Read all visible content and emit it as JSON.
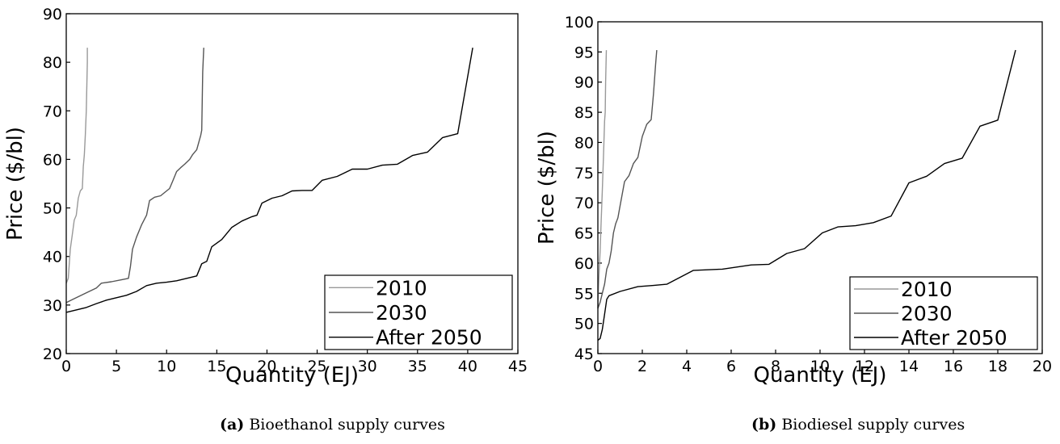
{
  "captions": [
    {
      "tag": "(a)",
      "text": "Bioethanol supply curves"
    },
    {
      "tag": "(b)",
      "text": "Biodiesel supply curves"
    }
  ],
  "chart_data": [
    {
      "type": "line",
      "title": "",
      "xlabel": "Quantity (EJ)",
      "ylabel": "Price ($/bl)",
      "xlim": [
        0,
        45
      ],
      "ylim": [
        20,
        90
      ],
      "xticks": [
        0,
        5,
        10,
        15,
        20,
        25,
        30,
        35,
        40,
        45
      ],
      "yticks": [
        20,
        30,
        40,
        50,
        60,
        70,
        80,
        90
      ],
      "grid": false,
      "legend_position": "bottom-right",
      "series": [
        {
          "name": "2010",
          "color": "#999999",
          "x": [
            0,
            0.2,
            0.4,
            0.6,
            0.8,
            1.0,
            1.2,
            1.4,
            1.6,
            1.7,
            1.8,
            1.9,
            2.0,
            2.1,
            2.1
          ],
          "y": [
            34.5,
            35.5,
            41.5,
            44.5,
            47.5,
            48.5,
            52,
            53.5,
            54,
            58.5,
            61,
            65,
            70,
            80,
            83
          ]
        },
        {
          "name": "2030",
          "color": "#555555",
          "x": [
            0,
            0.5,
            1,
            2,
            3,
            3.5,
            4.5,
            5.5,
            6.2,
            6.4,
            6.6,
            7.0,
            7.5,
            8.0,
            8.3,
            8.8,
            9.4,
            10.3,
            10.6,
            11.0,
            11.4,
            11.8,
            12.3,
            12.6,
            13.0,
            13.2,
            13.4,
            13.5,
            13.6,
            13.7
          ],
          "y": [
            30.5,
            31,
            31.5,
            32.5,
            33.5,
            34.5,
            34.8,
            35.2,
            35.5,
            38,
            41.5,
            44,
            46.5,
            48.5,
            51.5,
            52.2,
            52.5,
            54,
            55.5,
            57.5,
            58.3,
            59,
            60,
            61,
            62,
            63.5,
            65,
            66,
            78,
            83
          ]
        },
        {
          "name": "After 2050",
          "color": "#000000",
          "x": [
            0,
            1,
            2,
            3,
            4,
            5,
            6,
            7,
            8,
            9,
            10,
            11,
            12,
            13,
            13.5,
            14,
            14.5,
            15.5,
            16.5,
            17.5,
            18.5,
            19,
            19.5,
            20.5,
            21.5,
            22.5,
            23.5,
            24.5,
            25.5,
            27,
            28.5,
            30,
            31.5,
            33,
            34.5,
            36,
            37.5,
            39,
            40.5
          ],
          "y": [
            28.5,
            29,
            29.5,
            30.3,
            31,
            31.5,
            32,
            32.8,
            34,
            34.5,
            34.7,
            35,
            35.5,
            36,
            38.5,
            39,
            42,
            43.5,
            46,
            47.3,
            48.2,
            48.5,
            51,
            52,
            52.5,
            53.5,
            53.6,
            53.6,
            55.7,
            56.5,
            58,
            58,
            58.8,
            59,
            60.8,
            61.5,
            64.5,
            65.3,
            83
          ]
        }
      ]
    },
    {
      "type": "line",
      "title": "",
      "xlabel": "Quantity (EJ)",
      "ylabel": "Price ($/bl)",
      "xlim": [
        0,
        20
      ],
      "ylim": [
        45,
        100
      ],
      "xticks": [
        0,
        2,
        4,
        6,
        8,
        10,
        12,
        14,
        16,
        18,
        20
      ],
      "yticks": [
        45,
        50,
        55,
        60,
        65,
        70,
        75,
        80,
        85,
        90,
        95,
        100
      ],
      "grid": false,
      "legend_position": "bottom-right",
      "series": [
        {
          "name": "2010",
          "color": "#999999",
          "x": [
            0,
            0.02,
            0.05,
            0.1,
            0.15,
            0.2,
            0.25,
            0.3,
            0.33,
            0.35,
            0.38
          ],
          "y": [
            52.5,
            55,
            58,
            62,
            67,
            72,
            77.5,
            83.5,
            85,
            90,
            95.3
          ]
        },
        {
          "name": "2030",
          "color": "#555555",
          "x": [
            0,
            0.1,
            0.2,
            0.3,
            0.4,
            0.5,
            0.6,
            0.7,
            0.8,
            0.9,
            1.0,
            1.2,
            1.4,
            1.6,
            1.8,
            2.0,
            2.2,
            2.4,
            2.5,
            2.6,
            2.65
          ],
          "y": [
            52.5,
            53.5,
            55,
            56.5,
            59,
            60,
            62,
            65,
            66.5,
            67.5,
            69.5,
            73.5,
            74.5,
            76.5,
            77.5,
            81,
            83,
            83.8,
            88,
            93,
            95.3
          ]
        },
        {
          "name": "After 2050",
          "color": "#000000",
          "x": [
            0,
            0.1,
            0.2,
            0.3,
            0.4,
            0.5,
            1.0,
            1.8,
            2.5,
            3.1,
            4.3,
            5.6,
            6.9,
            7.7,
            8.5,
            9.3,
            10.1,
            10.8,
            11.6,
            12.4,
            13.2,
            14.0,
            14.8,
            15.6,
            16.4,
            17.2,
            18.0,
            18.8
          ],
          "y": [
            47.2,
            47.5,
            49,
            51.5,
            54,
            54.6,
            55.3,
            56.1,
            56.3,
            56.5,
            58.8,
            59,
            59.7,
            59.8,
            61.6,
            62.4,
            65,
            66,
            66.2,
            66.7,
            67.8,
            73.3,
            74.4,
            76.5,
            77.4,
            82.7,
            83.7,
            95.3
          ]
        }
      ]
    }
  ]
}
